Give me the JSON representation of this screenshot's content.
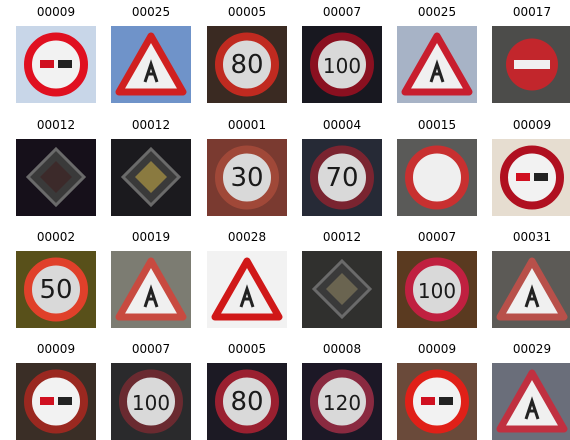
{
  "grid": {
    "rows": [
      {
        "tiles": [
          {
            "label": "00009",
            "sign": "no-overtaking-sign-icon",
            "bg": "#c8d6e8",
            "accent": "#e01020"
          },
          {
            "label": "00025",
            "sign": "road-works-sign-icon",
            "bg": "#6f93c9",
            "accent": "#d02020"
          },
          {
            "label": "00005",
            "sign": "speed-limit-80-sign-icon",
            "bg": "#3a2a22",
            "accent": "#c02a20",
            "text": "80"
          },
          {
            "label": "00007",
            "sign": "speed-limit-100-sign-icon",
            "bg": "#181820",
            "accent": "#8a1020",
            "text": "100"
          },
          {
            "label": "00025",
            "sign": "road-works-sign-icon",
            "bg": "#a7b3c6",
            "accent": "#c81e2e"
          },
          {
            "label": "00017",
            "sign": "no-entry-sign-icon",
            "bg": "#4c4c4a",
            "accent": "#c2262c"
          }
        ]
      },
      {
        "tiles": [
          {
            "label": "00012",
            "sign": "priority-road-sign-icon",
            "bg": "#16101a",
            "accent": "#3c2a2a"
          },
          {
            "label": "00012",
            "sign": "priority-road-sign-icon",
            "bg": "#1b1a1e",
            "accent": "#8a7a40"
          },
          {
            "label": "00001",
            "sign": "speed-limit-30-sign-icon",
            "bg": "#7a3a30",
            "accent": "#a04838",
            "text": "30"
          },
          {
            "label": "00004",
            "sign": "speed-limit-70-sign-icon",
            "bg": "#262a36",
            "accent": "#7a2430",
            "text": "70"
          },
          {
            "label": "00015",
            "sign": "no-vehicles-sign-icon",
            "bg": "#5a5a58",
            "accent": "#c83030"
          },
          {
            "label": "00009",
            "sign": "no-overtaking-sign-icon",
            "bg": "#e6ddd0",
            "accent": "#b01020"
          }
        ]
      },
      {
        "tiles": [
          {
            "label": "00002",
            "sign": "speed-limit-50-sign-icon",
            "bg": "#58501a",
            "accent": "#e0402a",
            "text": "50"
          },
          {
            "label": "00019",
            "sign": "dangerous-curve-left-sign-icon",
            "bg": "#7c7c72",
            "accent": "#c84a40"
          },
          {
            "label": "00028",
            "sign": "children-crossing-sign-icon",
            "bg": "#f2f2f2",
            "accent": "#d01818"
          },
          {
            "label": "00012",
            "sign": "priority-road-sign-icon",
            "bg": "#30302e",
            "accent": "#6a6450"
          },
          {
            "label": "00007",
            "sign": "speed-limit-100-sign-icon",
            "bg": "#5a3a20",
            "accent": "#c02040",
            "text": "100"
          },
          {
            "label": "00031",
            "sign": "wild-animals-crossing-sign-icon",
            "bg": "#5c5a56",
            "accent": "#b8504a"
          }
        ]
      },
      {
        "tiles": [
          {
            "label": "00009",
            "sign": "no-overtaking-sign-icon",
            "bg": "#3a2e26",
            "accent": "#9a2820"
          },
          {
            "label": "00007",
            "sign": "speed-limit-100-sign-icon",
            "bg": "#2a2a2c",
            "accent": "#6a2a30",
            "text": "100"
          },
          {
            "label": "00005",
            "sign": "speed-limit-80-sign-icon",
            "bg": "#1c1a24",
            "accent": "#9a2030",
            "text": "80"
          },
          {
            "label": "00008",
            "sign": "speed-limit-120-sign-icon",
            "bg": "#1c1826",
            "accent": "#8a2a40",
            "text": "120"
          },
          {
            "label": "00009",
            "sign": "no-overtaking-sign-icon",
            "bg": "#6a4a3a",
            "accent": "#e02018"
          },
          {
            "label": "00029",
            "sign": "bicycles-crossing-sign-icon",
            "bg": "#6a6e7a",
            "accent": "#c03040"
          }
        ]
      }
    ]
  }
}
